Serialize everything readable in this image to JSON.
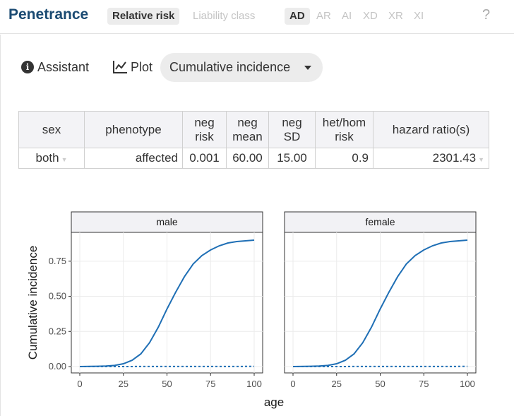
{
  "header": {
    "title": "Penetrance",
    "model_tabs": [
      {
        "label": "Relative risk",
        "active": true
      },
      {
        "label": "Liability class",
        "active": false
      }
    ],
    "inheritance_tabs": [
      {
        "label": "AD",
        "active": true
      },
      {
        "label": "AR",
        "active": false
      },
      {
        "label": "AI",
        "active": false
      },
      {
        "label": "XD",
        "active": false
      },
      {
        "label": "XR",
        "active": false
      },
      {
        "label": "XI",
        "active": false
      }
    ],
    "help_label": "?"
  },
  "controls": {
    "assistant_label": "Assistant",
    "plot_label": "Plot",
    "plot_select_value": "Cumulative incidence"
  },
  "table": {
    "headers": [
      [
        "sex"
      ],
      [
        "phenotype"
      ],
      [
        "neg",
        "risk"
      ],
      [
        "neg",
        "mean"
      ],
      [
        "neg",
        "SD"
      ],
      [
        "het/hom",
        "risk"
      ],
      [
        "hazard ratio(s)"
      ]
    ],
    "row": {
      "sex": "both",
      "phenotype": "affected",
      "neg_risk": "0.001",
      "neg_mean": "60.00",
      "neg_sd": "15.00",
      "het_hom_risk": "0.9",
      "hazard_ratio": "2301.43"
    }
  },
  "colors": {
    "title": "#1a4a72",
    "curve": "#1f6fb5",
    "panel_strip": "#f2f2f5",
    "grid": "#ebebeb"
  },
  "icons": {
    "assistant": "info-icon",
    "plot": "line-chart-icon",
    "select": "caret-down-icon"
  },
  "chart_data": {
    "type": "line",
    "xlabel": "age",
    "ylabel": "Cumulative incidence",
    "xlim": [
      0,
      100
    ],
    "ylim": [
      0,
      0.9
    ],
    "x_ticks": [
      0,
      25,
      50,
      75,
      100
    ],
    "y_ticks": [
      0,
      0.25,
      0.5,
      0.75
    ],
    "y_tick_labels": [
      "0.00",
      "0.25",
      "0.50",
      "0.75"
    ],
    "grid": true,
    "panels": [
      {
        "strip": "male",
        "series": [
          {
            "style": "solid",
            "x": [
              0,
              10,
              15,
              20,
              25,
              30,
              35,
              40,
              45,
              50,
              55,
              60,
              65,
              70,
              75,
              80,
              85,
              90,
              95,
              100
            ],
            "y": [
              0.0,
              0.002,
              0.004,
              0.008,
              0.02,
              0.045,
              0.09,
              0.17,
              0.28,
              0.41,
              0.53,
              0.64,
              0.73,
              0.79,
              0.83,
              0.86,
              0.88,
              0.89,
              0.895,
              0.9
            ]
          },
          {
            "style": "dotted",
            "x": [
              0,
              100
            ],
            "y": [
              0.0,
              0.001
            ]
          }
        ]
      },
      {
        "strip": "female",
        "series": [
          {
            "style": "solid",
            "x": [
              0,
              10,
              15,
              20,
              25,
              30,
              35,
              40,
              45,
              50,
              55,
              60,
              65,
              70,
              75,
              80,
              85,
              90,
              95,
              100
            ],
            "y": [
              0.0,
              0.002,
              0.004,
              0.008,
              0.02,
              0.045,
              0.09,
              0.17,
              0.28,
              0.41,
              0.53,
              0.64,
              0.73,
              0.79,
              0.83,
              0.86,
              0.88,
              0.89,
              0.895,
              0.9
            ]
          },
          {
            "style": "dotted",
            "x": [
              0,
              100
            ],
            "y": [
              0.0,
              0.001
            ]
          }
        ]
      }
    ]
  }
}
